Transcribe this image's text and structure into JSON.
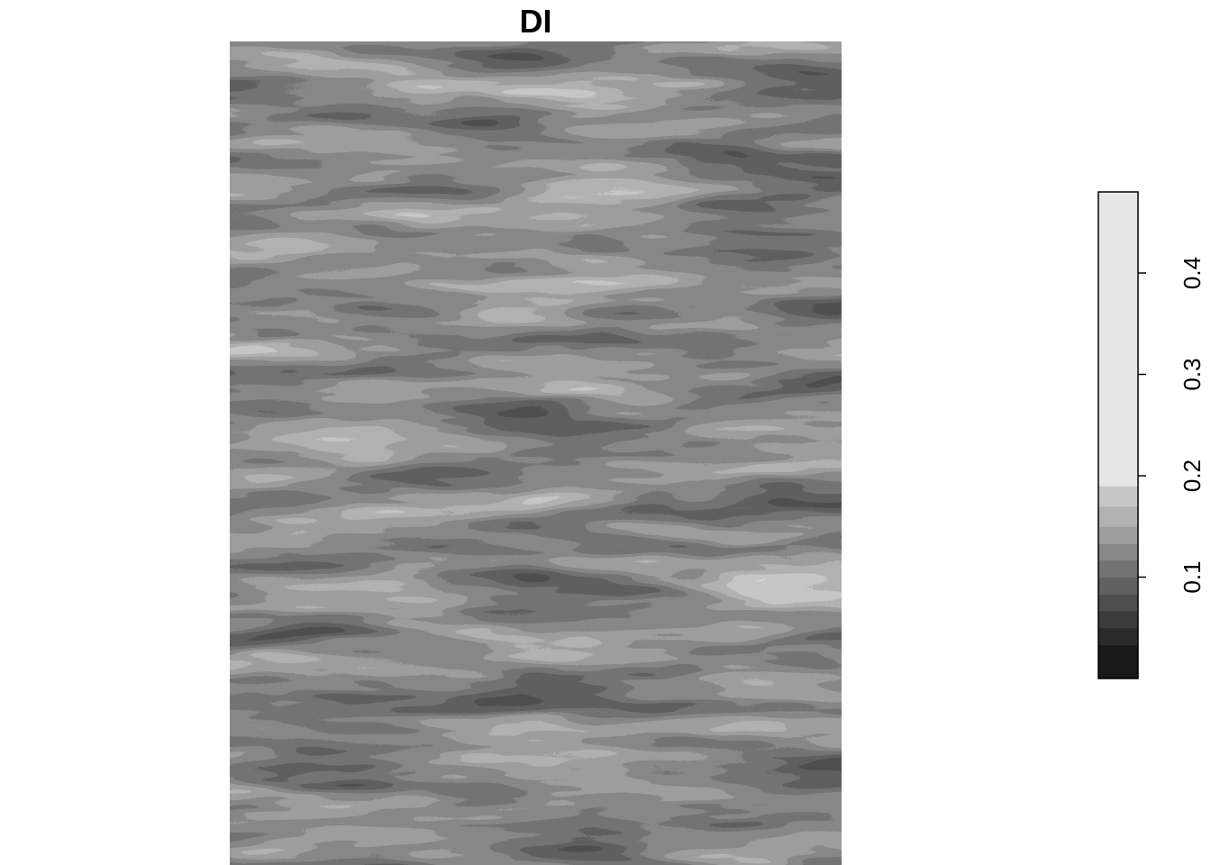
{
  "chart_data": {
    "type": "heatmap",
    "title": "DI",
    "xlabel": "",
    "ylabel": "",
    "grid": false,
    "axes_shown": false,
    "legend": {
      "placement": "right",
      "orientation": "vertical",
      "range": [
        0.0,
        0.48
      ],
      "ticks": [
        0.1,
        0.2,
        0.3,
        0.4
      ],
      "tick_labels": [
        "0.1",
        "0.2",
        "0.3",
        "0.4"
      ],
      "color_bins": [
        {
          "from": 0.0,
          "to": 0.033,
          "color": "#181818"
        },
        {
          "from": 0.033,
          "to": 0.05,
          "color": "#2a2a2a"
        },
        {
          "from": 0.05,
          "to": 0.067,
          "color": "#3c3c3c"
        },
        {
          "from": 0.067,
          "to": 0.083,
          "color": "#4e4e4e"
        },
        {
          "from": 0.083,
          "to": 0.1,
          "color": "#606060"
        },
        {
          "from": 0.1,
          "to": 0.117,
          "color": "#737373"
        },
        {
          "from": 0.117,
          "to": 0.133,
          "color": "#888888"
        },
        {
          "from": 0.133,
          "to": 0.15,
          "color": "#9d9d9d"
        },
        {
          "from": 0.15,
          "to": 0.17,
          "color": "#b2b2b2"
        },
        {
          "from": 0.17,
          "to": 0.19,
          "color": "#c7c7c7"
        },
        {
          "from": 0.19,
          "to": 0.48,
          "color": "#e6e6e6"
        }
      ]
    },
    "colors": {
      "darkest": "#181818",
      "lightest": "#e6e6e6",
      "frame": "#000000"
    }
  }
}
